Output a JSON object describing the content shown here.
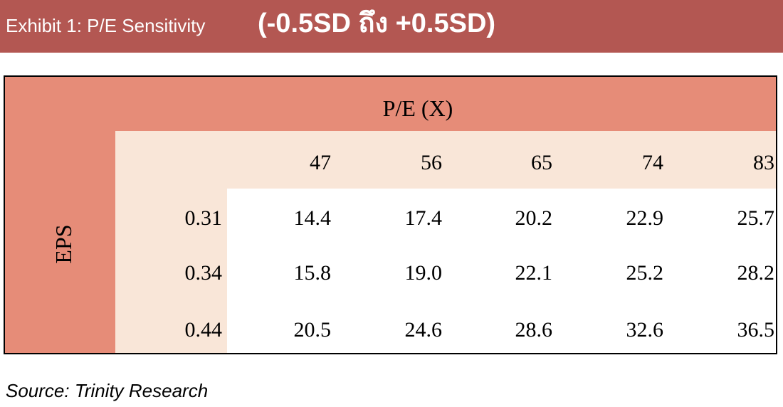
{
  "header": {
    "title": "Exhibit 1: P/E Sensitivity",
    "range": "(-0.5SD ถึง +0.5SD)"
  },
  "table": {
    "column_group_label": "P/E (X)",
    "row_group_label": "EPS",
    "pe_values": [
      "47",
      "56",
      "65",
      "74",
      "83"
    ],
    "rows": [
      {
        "eps": "0.31",
        "values": [
          "14.4",
          "17.4",
          "20.2",
          "22.9",
          "25.7"
        ]
      },
      {
        "eps": "0.34",
        "values": [
          "15.8",
          "19.0",
          "22.1",
          "25.2",
          "28.2"
        ]
      },
      {
        "eps": "0.44",
        "values": [
          "20.5",
          "24.6",
          "28.6",
          "32.6",
          "36.5"
        ]
      }
    ]
  },
  "footer": {
    "source": "Source: Trinity Research"
  },
  "colors": {
    "banner": "#b35752",
    "header_band": "#e68c78",
    "sub_band": "#f9e6d8",
    "body": "#ffffff"
  }
}
